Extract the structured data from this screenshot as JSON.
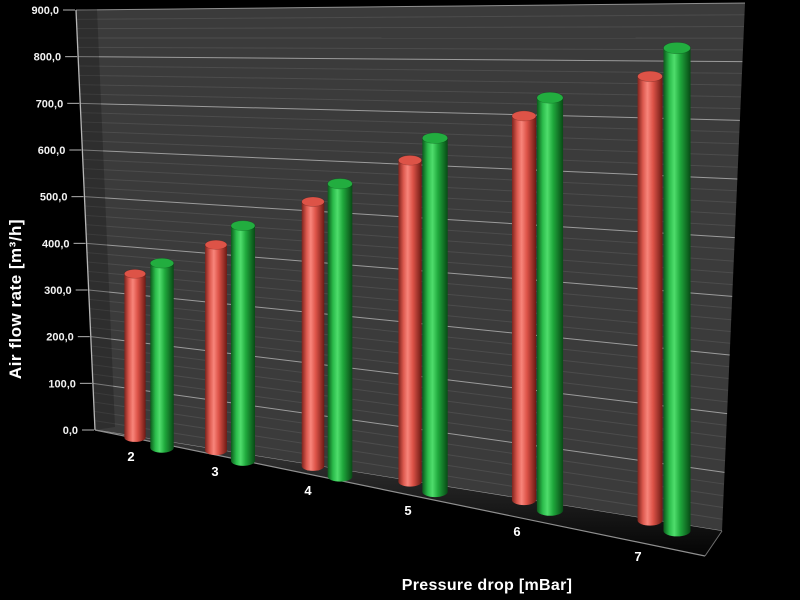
{
  "chart_data": {
    "type": "bar",
    "subtype": "3d-cylinder",
    "title": "",
    "xlabel": "Pressure drop [mBar]",
    "ylabel": "Air flow rate [m³/h]",
    "categories": [
      "2",
      "3",
      "4",
      "5",
      "6",
      "7"
    ],
    "series": [
      {
        "name": "red",
        "color": "#e0544a",
        "values": [
          345,
          420,
          520,
          610,
          700,
          775
        ]
      },
      {
        "name": "green",
        "color": "#28b146",
        "values": [
          385,
          475,
          570,
          665,
          745,
          835
        ]
      }
    ],
    "y_axis": {
      "min": 0,
      "max": 900,
      "major_step": 100,
      "minor_step": 20,
      "decimal_separator": ",",
      "tick_labels": [
        "900,0",
        "800,0",
        "700,0",
        "600,0",
        "500,0",
        "400,0",
        "300,0",
        "200,0",
        "100,0",
        "0,0"
      ]
    },
    "legend": "none",
    "grid": "on",
    "background_color": "#000000",
    "wall_color": "#3b3b3b",
    "floor_color": "#1c1c1c",
    "gridline_major_color": "#a8a8a8",
    "gridline_minor_color": "#4a4a4a"
  }
}
